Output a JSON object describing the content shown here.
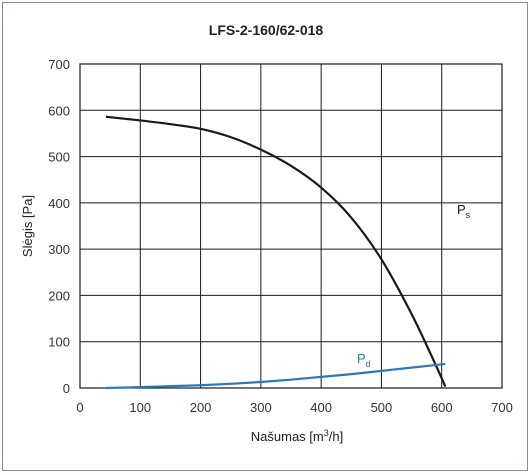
{
  "chart_data": {
    "type": "line",
    "title": "LFS-2-160/62-018",
    "xlabel": {
      "main": "Našumas [m",
      "sup": "3",
      "tail": "/h]"
    },
    "ylabel": "Slėgis [Pa]",
    "xlim": [
      0,
      700
    ],
    "ylim": [
      0,
      700
    ],
    "xticks": [
      "0",
      "100",
      "200",
      "300",
      "400",
      "500",
      "600",
      "700"
    ],
    "yticks": [
      "0",
      "100",
      "200",
      "300",
      "400",
      "500",
      "600",
      "700"
    ],
    "grid": true,
    "series": [
      {
        "name": "Ps",
        "label_main": "P",
        "label_sub": "s",
        "color": "#1a1a1a",
        "x": [
          43,
          100,
          150,
          200,
          250,
          300,
          350,
          400,
          450,
          500,
          550,
          590,
          606
        ],
        "y": [
          586,
          578,
          570,
          560,
          542,
          515,
          480,
          433,
          368,
          278,
          160,
          50,
          3
        ]
      },
      {
        "name": "Pd",
        "label_main": "P",
        "label_sub": "d",
        "color": "#2a7ab8",
        "x": [
          43,
          100,
          150,
          200,
          250,
          300,
          350,
          400,
          450,
          500,
          550,
          606
        ],
        "y": [
          0,
          2,
          4,
          6,
          9,
          13,
          18,
          24,
          30,
          37,
          44,
          52
        ]
      }
    ]
  }
}
